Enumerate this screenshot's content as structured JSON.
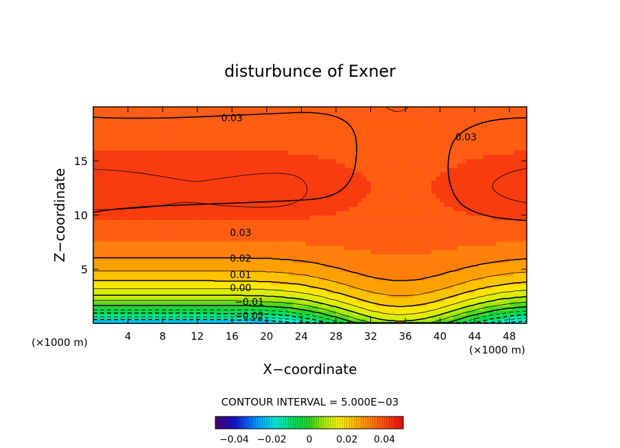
{
  "chart_data": {
    "type": "heatmap",
    "title": "disturbunce of Exner",
    "xlabel": "X−coordinate",
    "ylabel": "Z−coordinate",
    "x_unit_left": "(×1000 m)",
    "x_unit_right": "(×1000 m)",
    "xlim": [
      0,
      50
    ],
    "ylim": [
      0,
      20
    ],
    "x_ticks": [
      4,
      8,
      12,
      16,
      20,
      24,
      28,
      32,
      36,
      40,
      44,
      48
    ],
    "x_tick_labels": [
      "4",
      "8",
      "12",
      "16",
      "20",
      "24",
      "28",
      "32",
      "36",
      "40",
      "44",
      "48"
    ],
    "y_ticks": [
      5,
      10,
      15
    ],
    "y_tick_labels": [
      "5",
      "10",
      "15"
    ],
    "contour_interval_text": "CONTOUR INTERVAL = 5.000E−03",
    "contour_labels": [
      {
        "text": "0.03",
        "x": 16,
        "z": 19
      },
      {
        "text": "0.03",
        "x": 43,
        "z": 17.2
      },
      {
        "text": "0.03",
        "x": 17,
        "z": 8.4
      },
      {
        "text": "0.02",
        "x": 17,
        "z": 6.0
      },
      {
        "text": "0.01",
        "x": 17,
        "z": 4.5
      },
      {
        "text": "0.00",
        "x": 17,
        "z": 3.3
      },
      {
        "text": "−0.01",
        "x": 18,
        "z": 2.0
      },
      {
        "text": "−0.02",
        "x": 18,
        "z": 0.7
      }
    ],
    "colorbar": {
      "range": [
        -0.05,
        0.05
      ],
      "ticks": [
        -0.04,
        -0.02,
        0,
        0.02,
        0.04
      ],
      "tick_labels": [
        "−0.04",
        "−0.02",
        "0",
        "0.02",
        "0.04"
      ]
    },
    "colors": {
      "low": "#1010b0",
      "mid": "#10d050",
      "high": "#f01010"
    }
  }
}
